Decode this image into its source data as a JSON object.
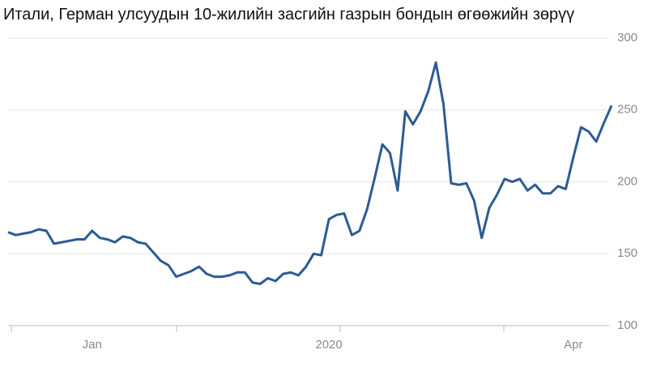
{
  "chart_data": {
    "type": "line",
    "title": "Итали, Герман улсуудын 10-жилийн засгийн газрын бондын өгөөжийн зөрүү",
    "categories": [
      null,
      null,
      null,
      null,
      null,
      null,
      null,
      null,
      null,
      null,
      null,
      "Jan",
      null,
      null,
      null,
      null,
      null,
      null,
      null,
      null,
      null,
      null,
      null,
      null,
      null,
      null,
      null,
      null,
      null,
      null,
      null,
      null,
      null,
      null,
      null,
      null,
      null,
      null,
      null,
      null,
      null,
      null,
      "2020",
      null,
      null,
      null,
      null,
      null,
      null,
      null,
      null,
      null,
      null,
      null,
      null,
      null,
      null,
      null,
      null,
      null,
      null,
      null,
      null,
      null,
      null,
      null,
      null,
      null,
      null,
      null,
      null,
      null,
      null,
      null,
      "Apr",
      null,
      null,
      null,
      null,
      null
    ],
    "series": [
      {
        "name": null,
        "color": "#2b5c94",
        "values": [
          165,
          163,
          164,
          165,
          167,
          166,
          157,
          158,
          159,
          160,
          160,
          166,
          161,
          160,
          158,
          162,
          161,
          158,
          157,
          151,
          145,
          142,
          134,
          136,
          138,
          141,
          136,
          134,
          134,
          135,
          137,
          137,
          130,
          129,
          133,
          131,
          136,
          137,
          135,
          141,
          150,
          149,
          174,
          177,
          178,
          163,
          166,
          181,
          203,
          226,
          220,
          194,
          249,
          240,
          249,
          263,
          283,
          254,
          199,
          198,
          199,
          187,
          161,
          182,
          191,
          202,
          200,
          202,
          194,
          198,
          192,
          192,
          197,
          195,
          217,
          238,
          235,
          228,
          241,
          253
        ]
      }
    ],
    "ylim": [
      100,
      300
    ],
    "yticks": [
      100,
      150,
      200,
      250,
      300
    ],
    "grid": true
  }
}
